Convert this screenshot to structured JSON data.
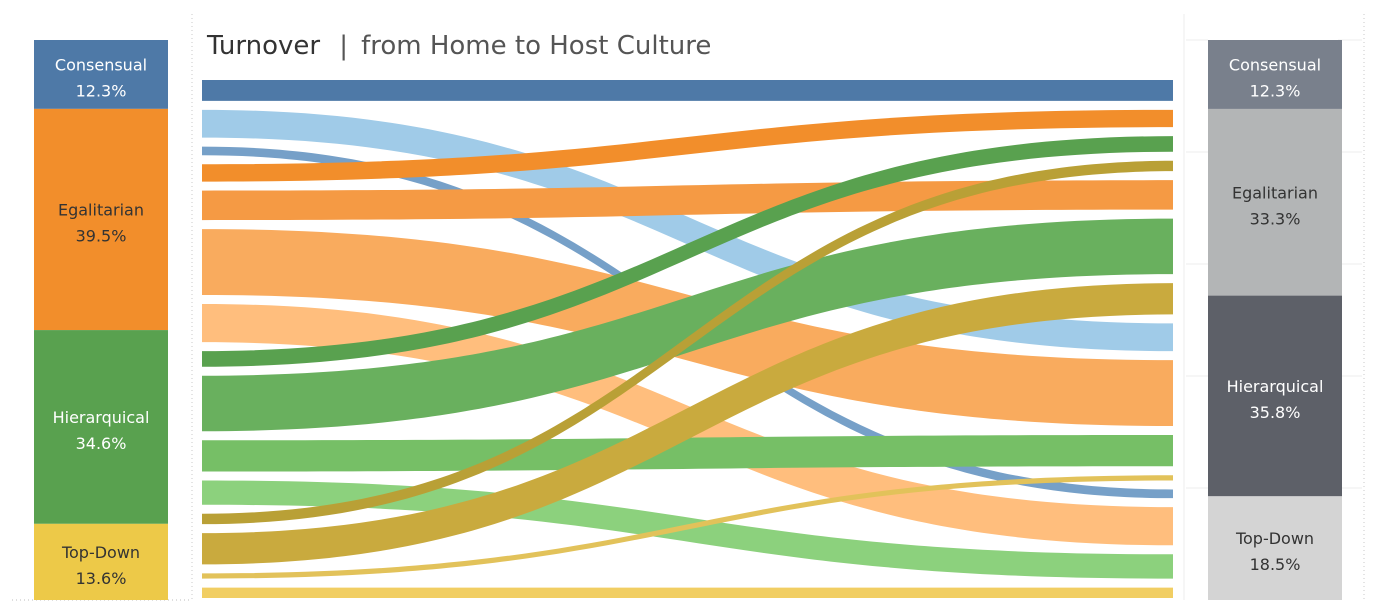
{
  "chart_data": {
    "type": "sankey",
    "title": "Turnover",
    "subtitle": "from Home to Host Culture",
    "title_separator": "|",
    "colors": {
      "left": {
        "Consensual": "#4e79a7",
        "Egalitarian": "#f28e2b",
        "Hierarquical": "#59a14f",
        "Top-Down": "#edc948"
      },
      "right": {
        "Consensual": "#79808c",
        "Egalitarian": "#b3b5b6",
        "Hierarquical": "#5d6068",
        "Top-Down": "#d4d4d4"
      },
      "left_text": {
        "Consensual": "#ffffff",
        "Egalitarian": "#333333",
        "Hierarquical": "#ffffff",
        "Top-Down": "#333333"
      },
      "right_text": {
        "Consensual": "#ffffff",
        "Egalitarian": "#333333",
        "Hierarquical": "#ffffff",
        "Top-Down": "#333333"
      }
    },
    "home": [
      {
        "name": "Consensual",
        "value": "12.3%"
      },
      {
        "name": "Egalitarian",
        "value": "39.5%"
      },
      {
        "name": "Hierarquical",
        "value": "34.6%"
      },
      {
        "name": "Top-Down",
        "value": "13.6%"
      }
    ],
    "host": [
      {
        "name": "Consensual",
        "value": "12.3%"
      },
      {
        "name": "Egalitarian",
        "value": "33.3%"
      },
      {
        "name": "Hierarquical",
        "value": "35.8%"
      },
      {
        "name": "Top-Down",
        "value": "18.5%"
      }
    ],
    "flows": [
      {
        "from": "Consensual",
        "to": "Consensual",
        "share": 0.012,
        "color": "#4e79a7"
      },
      {
        "from": "Consensual",
        "to": "Hierarquical",
        "share": 0.016,
        "color": "#a0cbe8"
      },
      {
        "from": "Consensual",
        "to": "Top-Down",
        "share": 0.005,
        "color": "#76a0c8"
      },
      {
        "from": "Egalitarian",
        "to": "Consensual",
        "share": 0.01,
        "color": "#f28e2b"
      },
      {
        "from": "Egalitarian",
        "to": "Egalitarian",
        "share": 0.017,
        "color": "#f59a44"
      },
      {
        "from": "Egalitarian",
        "to": "Hierarquical",
        "share": 0.038,
        "color": "#f9ab5e"
      },
      {
        "from": "Egalitarian",
        "to": "Top-Down",
        "share": 0.022,
        "color": "#ffbe7d"
      },
      {
        "from": "Hierarquical",
        "to": "Consensual",
        "share": 0.009,
        "color": "#59a14f"
      },
      {
        "from": "Hierarquical",
        "to": "Egalitarian",
        "share": 0.032,
        "color": "#69b05e"
      },
      {
        "from": "Hierarquical",
        "to": "Hierarquical",
        "share": 0.018,
        "color": "#76bf66"
      },
      {
        "from": "Hierarquical",
        "to": "Top-Down",
        "share": 0.014,
        "color": "#8cd17d"
      },
      {
        "from": "Top-Down",
        "to": "Consensual",
        "share": 0.006,
        "color": "#b9a036"
      },
      {
        "from": "Top-Down",
        "to": "Egalitarian",
        "share": 0.018,
        "color": "#c9aa3e"
      },
      {
        "from": "Top-Down",
        "to": "Hierarquical",
        "share": 0.003,
        "color": "#e2c25a"
      },
      {
        "from": "Top-Down",
        "to": "Top-Down",
        "share": 0.006,
        "color": "#f1ce63"
      }
    ]
  }
}
